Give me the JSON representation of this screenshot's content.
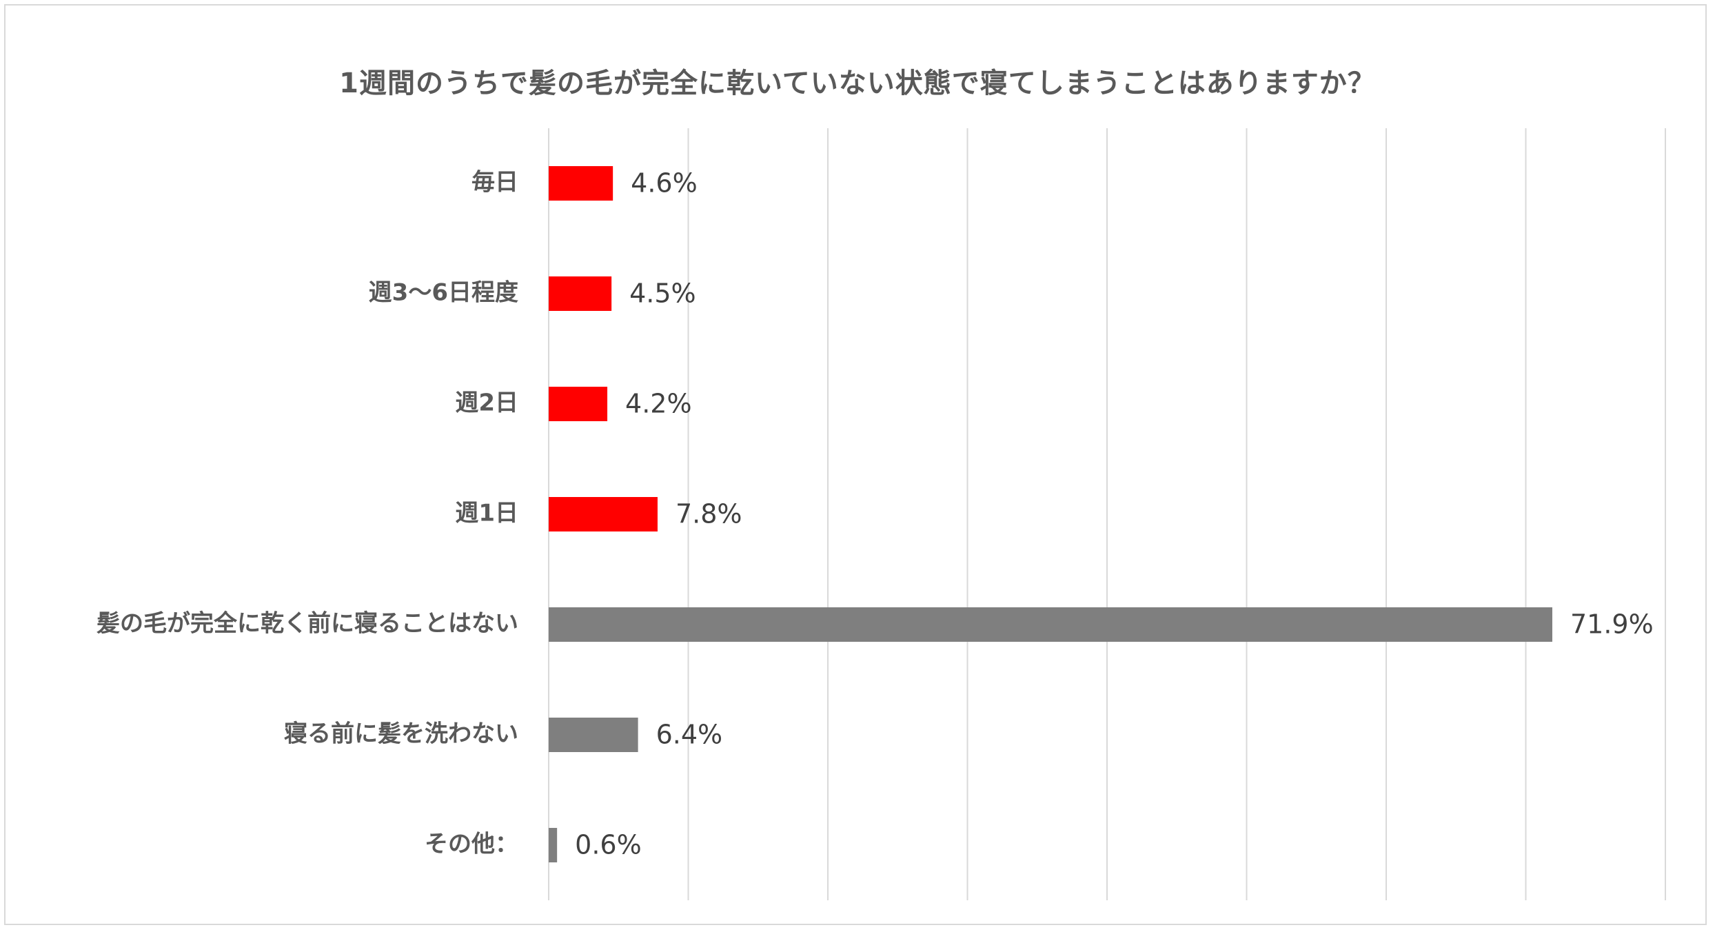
{
  "chart_data": {
    "type": "bar",
    "orientation": "horizontal",
    "title": "1週間のうちで髪の毛が完全に乾いていない状態で寝てしまうことはありますか？",
    "xlabel": "",
    "ylabel": "",
    "xlim": [
      0,
      80
    ],
    "grid": true,
    "categories": [
      "毎日",
      "週3～6日程度",
      "週2日",
      "週1日",
      "髪の毛が完全に乾く前に寝ることはない",
      "寝る前に髪を洗わない",
      "その他："
    ],
    "values": [
      4.6,
      4.5,
      4.2,
      7.8,
      71.9,
      6.4,
      0.6
    ],
    "data_labels": [
      "4.6%",
      "4.5%",
      "4.2%",
      "7.8%",
      "71.9%",
      "6.4%",
      "0.6%"
    ],
    "colors": [
      "#ff0000",
      "#ff0000",
      "#ff0000",
      "#ff0000",
      "#7f7f7f",
      "#7f7f7f",
      "#7f7f7f"
    ],
    "gridline_color": "#d9d9d9"
  }
}
